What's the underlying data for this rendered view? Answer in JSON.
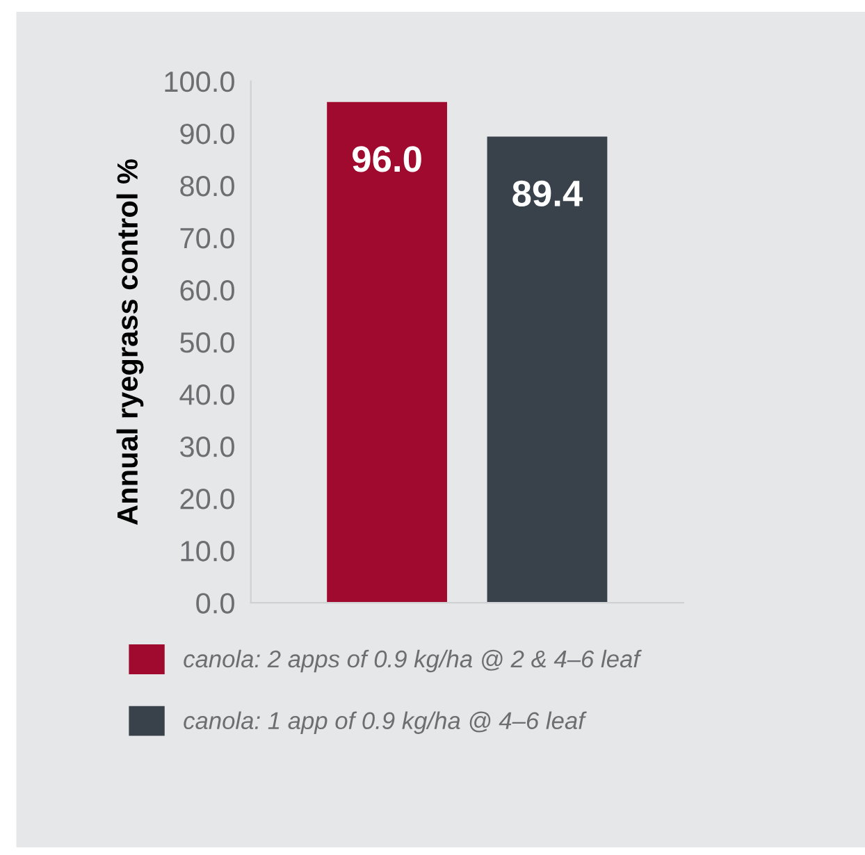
{
  "chart_data": {
    "type": "bar",
    "ylabel": "Annual ryegrass control %",
    "categories": [
      null,
      null
    ],
    "series": [
      {
        "name": "canola: 2 apps of 0.9 kg/ha @ 2 & 4–6 leaf",
        "color": "#a00a2e",
        "values": [
          96.0,
          null
        ],
        "value_labels": [
          "96.0",
          null
        ]
      },
      {
        "name": "canola: 1 app of 0.9 kg/ha @ 4–6 leaf",
        "color": "#39414b",
        "values": [
          null,
          89.4
        ],
        "value_labels": [
          null,
          "89.4"
        ]
      }
    ],
    "ylim": [
      0,
      100
    ],
    "yticks": [
      {
        "value": 0,
        "label": "0.0"
      },
      {
        "value": 10,
        "label": "10.0"
      },
      {
        "value": 20,
        "label": "20.0"
      },
      {
        "value": 30,
        "label": "30.0"
      },
      {
        "value": 40,
        "label": "40.0"
      },
      {
        "value": 50,
        "label": "50.0"
      },
      {
        "value": 60,
        "label": "60.0"
      },
      {
        "value": 70,
        "label": "70.0"
      },
      {
        "value": 80,
        "label": "80.0"
      },
      {
        "value": 90,
        "label": "90.0"
      },
      {
        "value": 100,
        "label": "100.0"
      }
    ],
    "grid": false,
    "legend": "bottom"
  }
}
